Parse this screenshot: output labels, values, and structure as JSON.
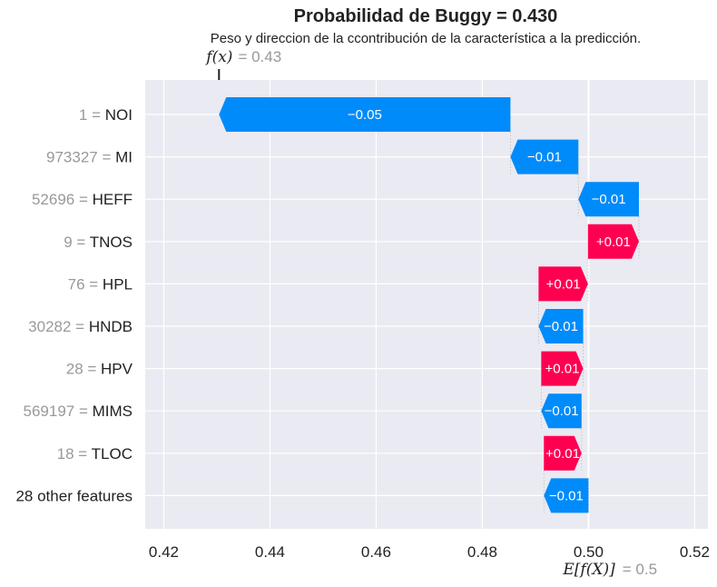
{
  "chart_data": {
    "type": "bar",
    "subtype": "waterfall",
    "title": "Probabilidad de Buggy = 0.430",
    "subtitle": "Peso y direccion de la ccontribución de la característica a la predicción.",
    "xlim": [
      0.4165,
      0.5225
    ],
    "xticks": [
      0.42,
      0.44,
      0.46,
      0.48,
      0.5,
      0.52
    ],
    "xtick_labels": [
      "0.42",
      "0.44",
      "0.46",
      "0.48",
      "0.50",
      "0.52"
    ],
    "grid": true,
    "base_value": 0.5,
    "base_label": "E[f(X)]",
    "base_label_value": "= 0.5",
    "fx_value": 0.4304,
    "fx_label": "f(x)",
    "fx_label_value": "= 0.43",
    "colors": {
      "negative": "#008bfb",
      "positive": "#ff0051",
      "background": "#eaeaf2"
    },
    "features": [
      {
        "value": "1",
        "name": "NOI",
        "start": 0.4853,
        "end": 0.4304,
        "label": "−0.05"
      },
      {
        "value": "973327",
        "name": "MI",
        "start": 0.4981,
        "end": 0.4853,
        "label": "−0.01"
      },
      {
        "value": "52696",
        "name": "HEFF",
        "start": 0.5095,
        "end": 0.4981,
        "label": "−0.01"
      },
      {
        "value": "9",
        "name": "TNOS",
        "start": 0.4999,
        "end": 0.5095,
        "label": "+0.01"
      },
      {
        "value": "76",
        "name": "HPL",
        "start": 0.4906,
        "end": 0.4999,
        "label": "+0.01"
      },
      {
        "value": "30282",
        "name": "HNDB",
        "start": 0.499,
        "end": 0.4906,
        "label": "−0.01"
      },
      {
        "value": "28",
        "name": "HPV",
        "start": 0.4911,
        "end": 0.499,
        "label": "+0.01"
      },
      {
        "value": "569197",
        "name": "MIMS",
        "start": 0.4987,
        "end": 0.4911,
        "label": "−0.01"
      },
      {
        "value": "18",
        "name": "TLOC",
        "start": 0.4916,
        "end": 0.4987,
        "label": "+0.01"
      },
      {
        "value": "",
        "name": "28 other features",
        "start": 0.5,
        "end": 0.4916,
        "label": "−0.01"
      }
    ]
  }
}
